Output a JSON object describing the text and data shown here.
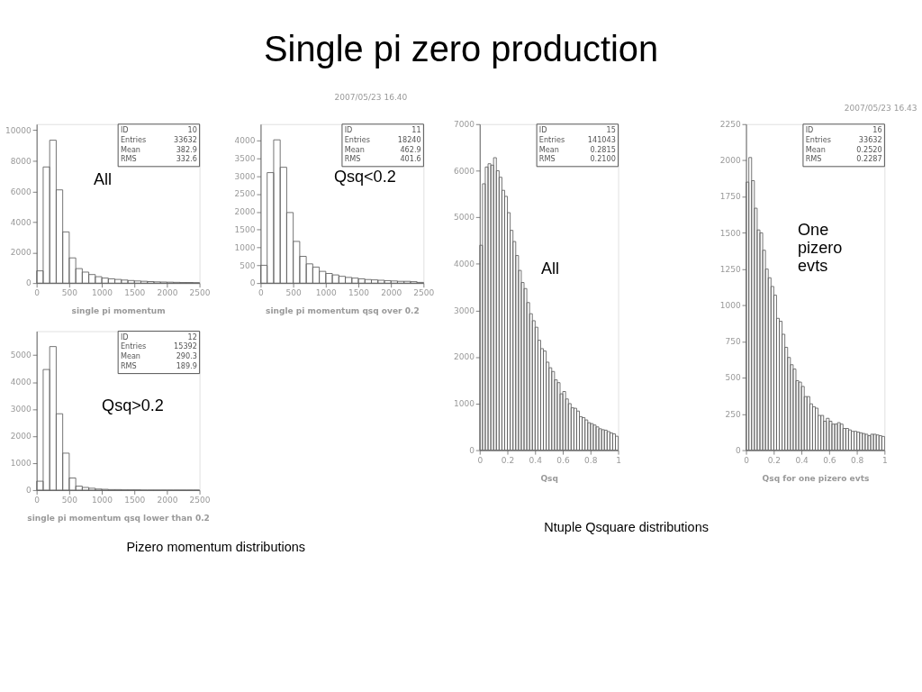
{
  "chart_data": [
    {
      "type": "histogram",
      "xlabel": "single pi momentum",
      "color": "#666666",
      "bins": [
        0,
        100,
        200,
        300,
        400,
        500,
        600,
        700,
        800,
        900,
        1000,
        1100,
        1200,
        1300,
        1400,
        1500,
        1600,
        1700,
        1800,
        1900,
        2000,
        2100,
        2200,
        2300,
        2400,
        2500
      ],
      "values": [
        800,
        7600,
        9350,
        6100,
        3350,
        1650,
        950,
        720,
        560,
        420,
        330,
        280,
        240,
        200,
        170,
        140,
        120,
        100,
        80,
        70,
        60,
        50,
        40,
        40,
        30
      ],
      "xlim": [
        0,
        2500
      ],
      "xticks": [
        0,
        500,
        1000,
        1500,
        2000,
        2500
      ],
      "ylim": [
        0,
        10400
      ],
      "yticks": [
        0,
        2000,
        4000,
        6000,
        8000,
        10000
      ],
      "annotations": [
        "All",
        "ID 10",
        "Entries 33632",
        "Mean 382.9",
        "RMS 332.6"
      ]
    },
    {
      "type": "histogram",
      "title": "Single pi zero production",
      "xlabel": "single pi momentum qsq over 0.2",
      "color": "#666666",
      "bins": [
        0,
        100,
        200,
        300,
        400,
        500,
        600,
        700,
        800,
        900,
        1000,
        1100,
        1200,
        1300,
        1400,
        1500,
        1600,
        1700,
        1800,
        1900,
        2000,
        2100,
        2200,
        2300,
        2400,
        2500
      ],
      "values": [
        500,
        3100,
        4020,
        3250,
        1980,
        1170,
        750,
        540,
        450,
        330,
        270,
        230,
        190,
        160,
        140,
        120,
        100,
        90,
        80,
        70,
        60,
        50,
        50,
        40,
        20
      ],
      "xlim": [
        0,
        2500
      ],
      "xticks": [
        0,
        500,
        1000,
        1500,
        2000,
        2500
      ],
      "ylim": [
        0,
        4460
      ],
      "yticks": [
        0,
        500,
        1000,
        1500,
        2000,
        2500,
        3000,
        3500,
        4000
      ],
      "annotations": [
        "Qsq<0.2",
        "ID 11",
        "Entries 18240",
        "Mean 462.9",
        "RMS 401.6",
        "2007/05/23  16.40"
      ]
    },
    {
      "type": "histogram",
      "xlabel": "single pi momentum qsq lower than 0.2",
      "color": "#666666",
      "bins": [
        0,
        100,
        200,
        300,
        400,
        500,
        600,
        700,
        800,
        900,
        1000,
        1100,
        1200,
        1300,
        1400,
        1500,
        1600,
        1700,
        1800,
        1900,
        2000,
        2100,
        2200,
        2300,
        2400,
        2500
      ],
      "values": [
        330,
        4470,
        5320,
        2830,
        1370,
        450,
        150,
        100,
        70,
        40,
        30,
        20,
        20,
        10,
        10,
        10,
        0,
        0,
        0,
        0,
        0,
        0,
        0,
        0,
        0
      ],
      "xlim": [
        0,
        2500
      ],
      "xticks": [
        0,
        500,
        1000,
        1500,
        2000,
        2500
      ],
      "ylim": [
        0,
        5890
      ],
      "yticks": [
        0,
        1000,
        2000,
        3000,
        4000,
        5000
      ],
      "annotations": [
        "Qsq>0.2",
        "ID 12",
        "Entries 15392",
        "Mean 290.3",
        "RMS 189.9",
        "Pizero momentum distributions"
      ]
    },
    {
      "type": "histogram",
      "xlabel": "Qsq",
      "color": "#666666",
      "bins": [
        0,
        0.02,
        0.04,
        0.06,
        0.08,
        0.1,
        0.12,
        0.14,
        0.16,
        0.18,
        0.2,
        0.22,
        0.24,
        0.26,
        0.28,
        0.3,
        0.32,
        0.34,
        0.36,
        0.38,
        0.4,
        0.42,
        0.44,
        0.46,
        0.48,
        0.5,
        0.52,
        0.54,
        0.56,
        0.58,
        0.6,
        0.62,
        0.64,
        0.66,
        0.68,
        0.7,
        0.72,
        0.74,
        0.76,
        0.78,
        0.8,
        0.82,
        0.84,
        0.86,
        0.88,
        0.9,
        0.92,
        0.94,
        0.96,
        0.98,
        1
      ],
      "values": [
        4400,
        5720,
        6080,
        6150,
        6120,
        6280,
        6000,
        5860,
        5580,
        5450,
        5100,
        4720,
        4480,
        4180,
        3860,
        3600,
        3470,
        3170,
        2930,
        2780,
        2640,
        2360,
        2180,
        2130,
        1890,
        1770,
        1690,
        1510,
        1450,
        1210,
        1260,
        1100,
        1000,
        910,
        900,
        840,
        720,
        700,
        650,
        590,
        570,
        540,
        500,
        460,
        440,
        430,
        400,
        370,
        350,
        300
      ],
      "xlim": [
        0,
        1
      ],
      "xticks": [
        0,
        0.2,
        0.4,
        0.6,
        0.8,
        1
      ],
      "ylim": [
        0,
        7000
      ],
      "yticks": [
        0,
        1000,
        2000,
        3000,
        4000,
        5000,
        6000,
        7000
      ],
      "annotations": [
        "All",
        "ID 15",
        "Entries 141043",
        "Mean 0.2815",
        "RMS 0.2100",
        "Ntuple Qsquare distributions"
      ]
    },
    {
      "type": "histogram",
      "xlabel": "Qsq for one pizero evts",
      "color": "#666666",
      "bins": [
        0,
        0.02,
        0.04,
        0.06,
        0.08,
        0.1,
        0.12,
        0.14,
        0.16,
        0.18,
        0.2,
        0.22,
        0.24,
        0.26,
        0.28,
        0.3,
        0.32,
        0.34,
        0.36,
        0.38,
        0.4,
        0.42,
        0.44,
        0.46,
        0.48,
        0.5,
        0.52,
        0.54,
        0.56,
        0.58,
        0.6,
        0.62,
        0.64,
        0.66,
        0.68,
        0.7,
        0.72,
        0.74,
        0.76,
        0.78,
        0.8,
        0.82,
        0.84,
        0.86,
        0.88,
        0.9,
        0.92,
        0.94,
        0.96,
        0.98,
        1
      ],
      "values": [
        1850,
        2020,
        1860,
        1670,
        1520,
        1500,
        1380,
        1250,
        1190,
        1130,
        1070,
        910,
        890,
        800,
        710,
        640,
        590,
        560,
        480,
        470,
        440,
        370,
        370,
        320,
        300,
        290,
        240,
        240,
        200,
        220,
        200,
        180,
        180,
        190,
        180,
        150,
        150,
        140,
        130,
        130,
        125,
        120,
        115,
        110,
        100,
        110,
        110,
        105,
        100,
        95
      ],
      "xlim": [
        0,
        1
      ],
      "xticks": [
        0,
        0.2,
        0.4,
        0.6,
        0.8,
        1
      ],
      "ylim": [
        0,
        2250
      ],
      "yticks": [
        0,
        250,
        500,
        750,
        1000,
        1250,
        1500,
        1750,
        2000,
        2250
      ],
      "annotations": [
        "One pizero evts",
        "ID 16",
        "Entries 33632",
        "Mean 0.2520",
        "RMS 0.2287",
        "2007/05/23  16.43"
      ]
    }
  ]
}
